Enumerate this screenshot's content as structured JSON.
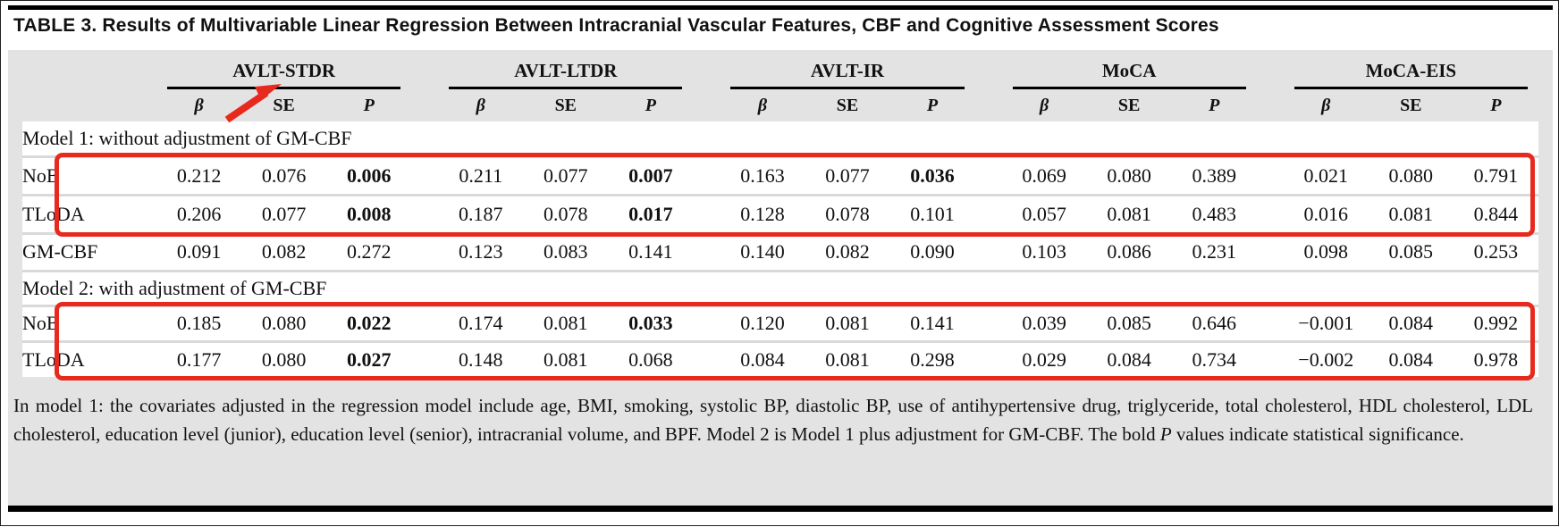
{
  "title": "TABLE 3. Results of Multivariable Linear Regression Between Intracranial Vascular Features, CBF and Cognitive Assessment Scores",
  "colors": {
    "accent_red": "#e8291d",
    "panel_gray": "#e3e3e3"
  },
  "table": {
    "groups": [
      {
        "label": "AVLT-STDR"
      },
      {
        "label": "AVLT-LTDR"
      },
      {
        "label": "AVLT-IR"
      },
      {
        "label": "MoCA"
      },
      {
        "label": "MoCA-EIS"
      }
    ],
    "subheaders": [
      "β",
      "SE",
      "P"
    ],
    "sections": [
      {
        "title": "Model 1: without adjustment of GM-CBF",
        "rows": [
          {
            "label": "NoB",
            "highlighted": true,
            "values": [
              "0.212",
              "0.076",
              "0.006",
              "0.211",
              "0.077",
              "0.007",
              "0.163",
              "0.077",
              "0.036",
              "0.069",
              "0.080",
              "0.389",
              "0.021",
              "0.080",
              "0.791"
            ],
            "bold_indices": [
              2,
              5,
              8
            ]
          },
          {
            "label": "TLoDA",
            "highlighted": true,
            "values": [
              "0.206",
              "0.077",
              "0.008",
              "0.187",
              "0.078",
              "0.017",
              "0.128",
              "0.078",
              "0.101",
              "0.057",
              "0.081",
              "0.483",
              "0.016",
              "0.081",
              "0.844"
            ],
            "bold_indices": [
              2,
              5
            ]
          },
          {
            "label": "GM-CBF",
            "highlighted": false,
            "values": [
              "0.091",
              "0.082",
              "0.272",
              "0.123",
              "0.083",
              "0.141",
              "0.140",
              "0.082",
              "0.090",
              "0.103",
              "0.086",
              "0.231",
              "0.098",
              "0.085",
              "0.253"
            ],
            "bold_indices": []
          }
        ]
      },
      {
        "title": "Model 2: with adjustment of GM-CBF",
        "rows": [
          {
            "label": "NoB",
            "highlighted": true,
            "values": [
              "0.185",
              "0.080",
              "0.022",
              "0.174",
              "0.081",
              "0.033",
              "0.120",
              "0.081",
              "0.141",
              "0.039",
              "0.085",
              "0.646",
              "−0.001",
              "0.084",
              "0.992"
            ],
            "bold_indices": [
              2,
              5
            ]
          },
          {
            "label": "TLoDA",
            "highlighted": true,
            "values": [
              "0.177",
              "0.080",
              "0.027",
              "0.148",
              "0.081",
              "0.068",
              "0.084",
              "0.081",
              "0.298",
              "0.029",
              "0.084",
              "0.734",
              "−0.002",
              "0.084",
              "0.978"
            ],
            "bold_indices": [
              2
            ]
          }
        ]
      }
    ]
  },
  "footnote": {
    "part1": "In model 1: the covariates adjusted in the regression model include age, BMI, smoking, systolic BP, diastolic BP, use of antihypertensive drug, triglyceride, total cholesterol, HDL cholesterol, LDL cholesterol, education level (junior), education level (senior), intracranial volume, and BPF. Model 2 is Model 1 plus adjustment for GM-CBF. The bold ",
    "italic_p": "P",
    "part2": " values indicate statistical significance."
  },
  "annotations": {
    "arrow_points_to": "AVLT-STDR",
    "box1_encloses": "Model 1: NoB and TLoDA rows",
    "box2_encloses": "Model 2: NoB and TLoDA rows"
  }
}
